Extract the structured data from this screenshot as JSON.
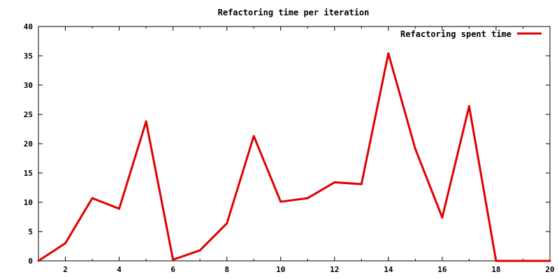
{
  "chart_data": {
    "type": "line",
    "title": "Refactoring time per iteration",
    "xlabel": "",
    "ylabel": "",
    "xlim": [
      1,
      20
    ],
    "ylim": [
      0,
      40
    ],
    "x_ticks": [
      "2",
      "4",
      "6",
      "8",
      "10",
      "12",
      "14",
      "16",
      "18",
      "20"
    ],
    "y_ticks": [
      "0",
      "5",
      "10",
      "15",
      "20",
      "25",
      "30",
      "35",
      "40"
    ],
    "grid": false,
    "legend_position": "top-right",
    "series": [
      {
        "name": "Refactoring spent time",
        "color": "#e00000",
        "x": [
          1,
          2,
          3,
          4,
          5,
          6,
          7,
          8,
          9,
          10,
          11,
          12,
          13,
          14,
          15,
          16,
          17,
          18,
          19,
          20
        ],
        "y": [
          0,
          3,
          10.7,
          8.9,
          23.8,
          0.2,
          1.8,
          6.4,
          21.3,
          10.1,
          10.7,
          13.4,
          13.1,
          35.4,
          19.1,
          7.4,
          26.4,
          0,
          0,
          0
        ]
      }
    ]
  }
}
